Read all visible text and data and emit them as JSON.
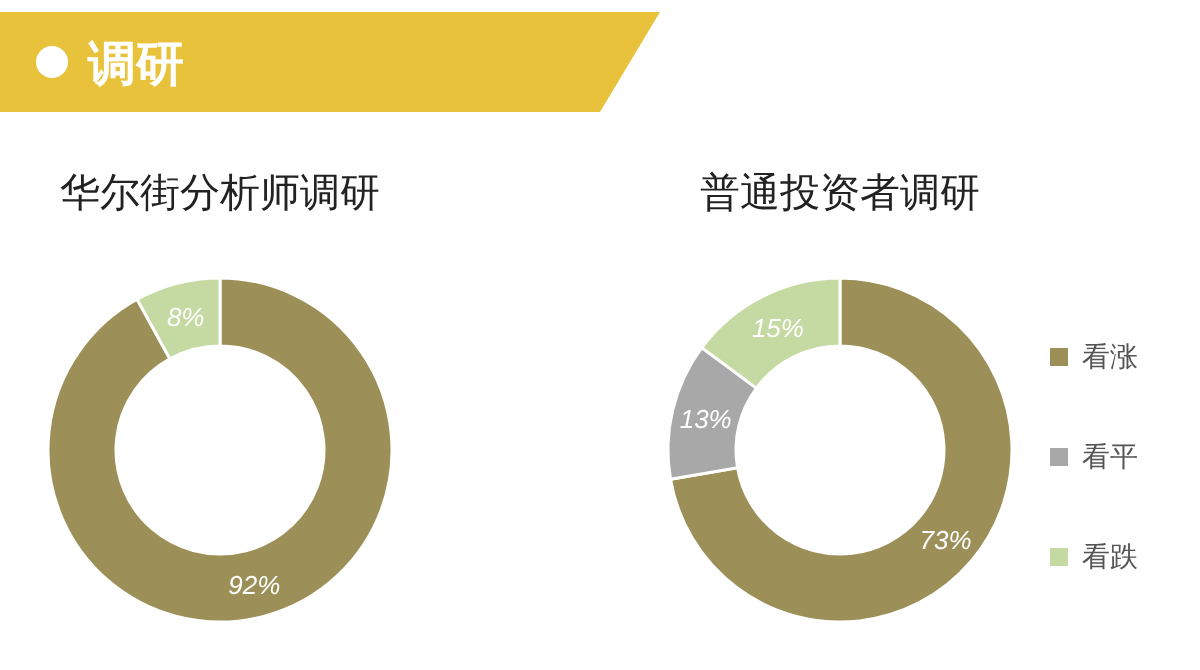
{
  "chart_data": [
    {
      "type": "donut",
      "title": "华尔街分析师调研",
      "annotations": [
        "调研"
      ],
      "categories": [
        null,
        null
      ],
      "values": [
        92,
        8
      ],
      "value_labels": [
        "92%",
        "8%"
      ],
      "colors": [
        "#9c9058",
        "#c5d9a2"
      ],
      "legend": false
    },
    {
      "type": "donut",
      "title": "普通投资者调研",
      "categories": [
        "看涨",
        "看平",
        "看跌"
      ],
      "values": [
        73,
        13,
        15
      ],
      "value_labels": [
        "73%",
        "13%",
        "15%"
      ],
      "colors": [
        "#9c9058",
        "#a8a8a8",
        "#c5d9a2"
      ],
      "legend": "right"
    }
  ]
}
